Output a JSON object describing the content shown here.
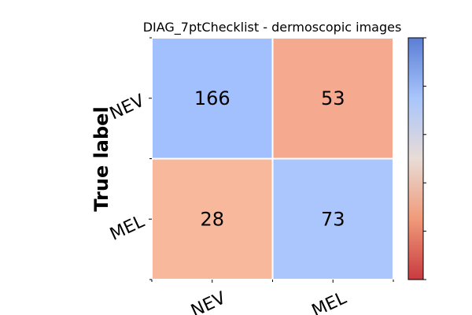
{
  "chart_data": {
    "type": "heatmap",
    "title": "DIAG_7ptChecklist - dermoscopic images",
    "ylabel": "True label",
    "xlabel": "",
    "x_categories": [
      "NEV",
      "MEL"
    ],
    "y_categories": [
      "NEV",
      "MEL"
    ],
    "values": [
      [
        166,
        53
      ],
      [
        28,
        73
      ]
    ],
    "colormap": "coolwarm_r",
    "colorbar": true,
    "cell_colors": [
      [
        "#a2bffe",
        "#f5a98f"
      ],
      [
        "#f7b89c",
        "#aac6fd"
      ]
    ]
  }
}
